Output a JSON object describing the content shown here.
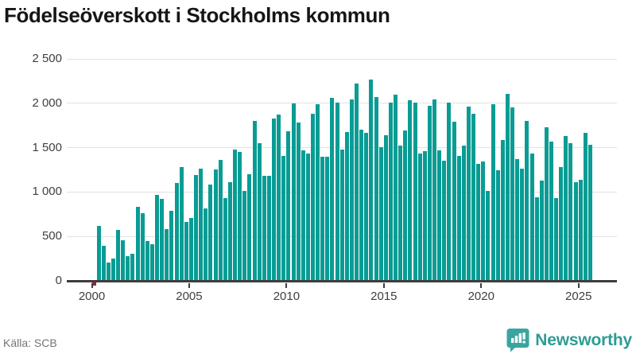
{
  "title": "Födelseöverskott i Stockholms kommun",
  "source": "Källa: SCB",
  "branding": {
    "name": "Newsworthy"
  },
  "colors": {
    "bar_positive": "#089c94",
    "bar_negative": "#9e2146",
    "axis": "#3d3d3d",
    "grid": "#e2e2e2",
    "tick_text": "#3f3f3f",
    "muted_text": "#757575",
    "brand_teal": "#2d9c95",
    "title_text": "#161616"
  },
  "chart_data": {
    "type": "bar",
    "title": "Födelseöverskott i Stockholms kommun",
    "xlabel": "",
    "ylabel": "",
    "period": "quarterly",
    "start": "2000 Q1",
    "end": "2025 Q3",
    "ylim": [
      0,
      2500
    ],
    "ytick_values": [
      0,
      500,
      1000,
      1500,
      2000,
      2500
    ],
    "ytick_labels": [
      "0",
      "500",
      "1 000",
      "1 500",
      "2 000",
      "2 500"
    ],
    "xtick_years": [
      2000,
      2005,
      2010,
      2015,
      2020,
      2025
    ],
    "xtick_labels": [
      "2000",
      "2005",
      "2010",
      "2015",
      "2020",
      "2025"
    ],
    "grid": "horizontal",
    "legend": "none",
    "values_by_year": [
      {
        "year": 2000,
        "q": [
          -30,
          615,
          395,
          205
        ]
      },
      {
        "year": 2001,
        "q": [
          255,
          575,
          460,
          280
        ]
      },
      {
        "year": 2002,
        "q": [
          305,
          830,
          760,
          445
        ]
      },
      {
        "year": 2003,
        "q": [
          415,
          970,
          925,
          580
        ]
      },
      {
        "year": 2004,
        "q": [
          790,
          1100,
          1285,
          660
        ]
      },
      {
        "year": 2005,
        "q": [
          705,
          1190,
          1260,
          815
        ]
      },
      {
        "year": 2006,
        "q": [
          1085,
          1255,
          1365,
          935
        ]
      },
      {
        "year": 2007,
        "q": [
          1115,
          1475,
          1450,
          1010
        ]
      },
      {
        "year": 2008,
        "q": [
          1200,
          1800,
          1550,
          1180
        ]
      },
      {
        "year": 2009,
        "q": [
          1180,
          1825,
          1875,
          1410
        ]
      },
      {
        "year": 2010,
        "q": [
          1685,
          2000,
          1785,
          1470
        ]
      },
      {
        "year": 2011,
        "q": [
          1430,
          1880,
          1985,
          1395
        ]
      },
      {
        "year": 2012,
        "q": [
          1395,
          2065,
          2005,
          1480
        ]
      },
      {
        "year": 2013,
        "q": [
          1675,
          2040,
          2225,
          1700
        ]
      },
      {
        "year": 2014,
        "q": [
          1670,
          2270,
          2070,
          1505
        ]
      },
      {
        "year": 2015,
        "q": [
          1640,
          2005,
          2095,
          1525
        ]
      },
      {
        "year": 2016,
        "q": [
          1690,
          2035,
          2005,
          1430
        ]
      },
      {
        "year": 2017,
        "q": [
          1465,
          1975,
          2045,
          1470
        ]
      },
      {
        "year": 2018,
        "q": [
          1355,
          2005,
          1795,
          1410
        ]
      },
      {
        "year": 2019,
        "q": [
          1525,
          1960,
          1880,
          1320
        ]
      },
      {
        "year": 2020,
        "q": [
          1340,
          1015,
          1990,
          1245
        ]
      },
      {
        "year": 2021,
        "q": [
          1590,
          2105,
          1950,
          1370
        ]
      },
      {
        "year": 2022,
        "q": [
          1260,
          1805,
          1435,
          940
        ]
      },
      {
        "year": 2023,
        "q": [
          1125,
          1730,
          1570,
          935
        ]
      },
      {
        "year": 2024,
        "q": [
          1285,
          1635,
          1550,
          1110
        ]
      },
      {
        "year": 2025,
        "q": [
          1135,
          1665,
          1535
        ]
      }
    ]
  }
}
